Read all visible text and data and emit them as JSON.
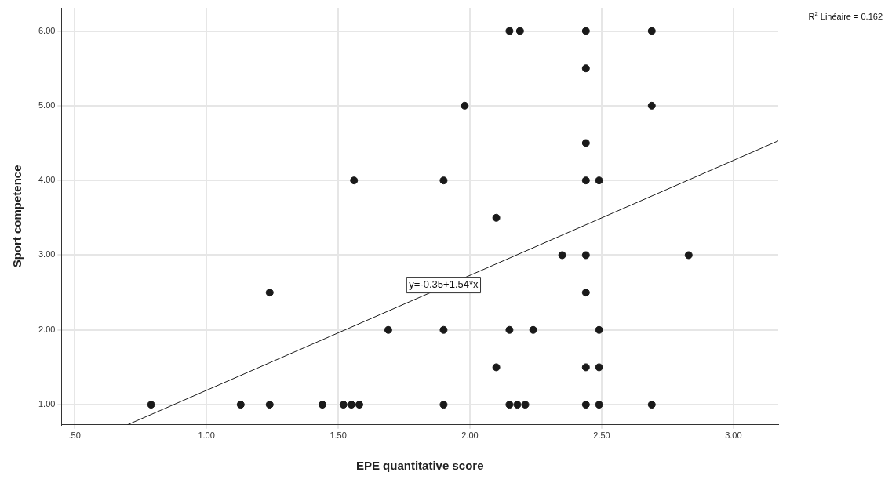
{
  "chart_data": {
    "type": "scatter",
    "xlabel": "EPE quantitative score",
    "ylabel": "Sport competence",
    "xlim": [
      0.45,
      3.17
    ],
    "ylim": [
      0.73,
      6.31
    ],
    "xticks": [
      {
        "value": 0.5,
        "label": ".50"
      },
      {
        "value": 1,
        "label": "1.00"
      },
      {
        "value": 1.5,
        "label": "1.50"
      },
      {
        "value": 2,
        "label": "2.00"
      },
      {
        "value": 2.5,
        "label": "2.50"
      },
      {
        "value": 3,
        "label": "3.00"
      }
    ],
    "yticks": [
      {
        "value": 1,
        "label": "1.00"
      },
      {
        "value": 2,
        "label": "2.00"
      },
      {
        "value": 3,
        "label": "3.00"
      },
      {
        "value": 4,
        "label": "4.00"
      },
      {
        "value": 5,
        "label": "5.00"
      },
      {
        "value": 6,
        "label": "6.00"
      }
    ],
    "grid": true,
    "legend": false,
    "marker": "circle",
    "series": [
      {
        "color": "#1a1a1a",
        "type": "scatter",
        "x": [
          0.79,
          1.13,
          1.24,
          1.24,
          1.44,
          1.52,
          1.55,
          1.56,
          1.58,
          1.69,
          1.9,
          1.9,
          1.9,
          1.98,
          2.1,
          2.1,
          2.15,
          2.15,
          2.19,
          2.15,
          2.18,
          2.21,
          2.24,
          2.35,
          2.44,
          2.44,
          2.44,
          2.44,
          2.44,
          2.44,
          2.44,
          2.44,
          2.49,
          2.49,
          2.49,
          2.49,
          2.69,
          2.69,
          2.69,
          2.83
        ],
        "values": [
          1,
          1,
          1,
          2.5,
          1,
          1,
          1,
          4,
          1,
          2,
          4,
          2,
          1,
          5,
          3.5,
          1.5,
          2,
          6,
          6,
          1,
          1,
          1,
          2,
          3,
          6,
          5.5,
          4.5,
          4,
          3,
          2.5,
          1.5,
          1,
          4,
          2,
          1.5,
          1,
          6,
          5,
          1,
          3
        ]
      },
      {
        "color": "#1a1a1a",
        "type": "line",
        "marker": "none",
        "x": [
          0.7,
          3.17
        ],
        "values": [
          0.73,
          4.53
        ]
      }
    ],
    "annotations": [
      "R$^{2}$ Linéaire = 0.162",
      {
        "text": "y=-0.35+1.54*x",
        "x": 1.9,
        "y": 2.6
      }
    ]
  }
}
